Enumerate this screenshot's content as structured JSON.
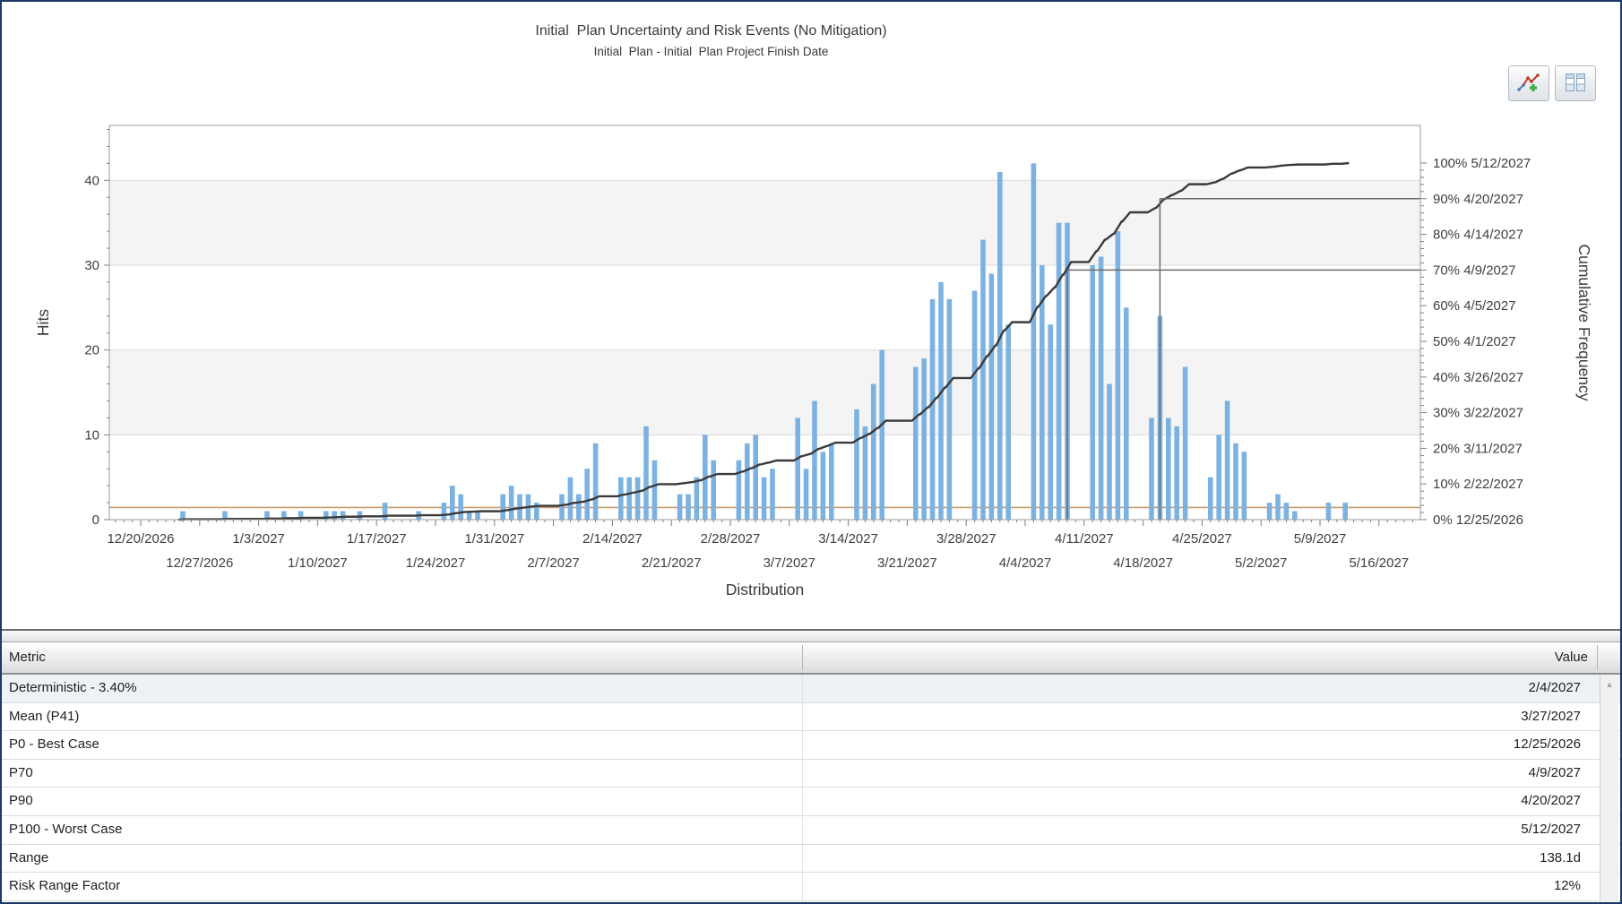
{
  "chart_data": {
    "type": "histogram+cumulative",
    "title": "Initial  Plan Uncertainty and Risk Events (No Mitigation)",
    "subtitle": "Initial  Plan - Initial  Plan Project Finish Date",
    "xlabel": "Distribution",
    "ylabel_left": "Hits",
    "ylabel_right": "Cumulative Frequency",
    "y_left": {
      "ticks": [
        0,
        10,
        20,
        30,
        40
      ],
      "max": 46
    },
    "shaded_bands": [
      [
        10,
        20
      ],
      [
        30,
        40
      ]
    ],
    "day_zero": "12/20/2026",
    "x_ticks": [
      {
        "date": "12/20/2026",
        "day": 0
      },
      {
        "date": "12/27/2026",
        "day": 7
      },
      {
        "date": "1/3/2027",
        "day": 14
      },
      {
        "date": "1/10/2027",
        "day": 21
      },
      {
        "date": "1/17/2027",
        "day": 28
      },
      {
        "date": "1/24/2027",
        "day": 35
      },
      {
        "date": "1/31/2027",
        "day": 42
      },
      {
        "date": "2/7/2027",
        "day": 49
      },
      {
        "date": "2/14/2027",
        "day": 56
      },
      {
        "date": "2/21/2027",
        "day": 63
      },
      {
        "date": "2/28/2027",
        "day": 70
      },
      {
        "date": "3/7/2027",
        "day": 77
      },
      {
        "date": "3/14/2027",
        "day": 84
      },
      {
        "date": "3/21/2027",
        "day": 91
      },
      {
        "date": "3/28/2027",
        "day": 98
      },
      {
        "date": "4/4/2027",
        "day": 105
      },
      {
        "date": "4/11/2027",
        "day": 112
      },
      {
        "date": "4/18/2027",
        "day": 119
      },
      {
        "date": "4/25/2027",
        "day": 126
      },
      {
        "date": "5/2/2027",
        "day": 133
      },
      {
        "date": "5/9/2027",
        "day": 140
      },
      {
        "date": "5/16/2027",
        "day": 147
      }
    ],
    "y_right_labels": [
      {
        "pct": 100,
        "date": "5/12/2027"
      },
      {
        "pct": 90,
        "date": "4/20/2027"
      },
      {
        "pct": 80,
        "date": "4/14/2027"
      },
      {
        "pct": 70,
        "date": "4/9/2027"
      },
      {
        "pct": 60,
        "date": "4/5/2027"
      },
      {
        "pct": 50,
        "date": "4/1/2027"
      },
      {
        "pct": 40,
        "date": "3/26/2027"
      },
      {
        "pct": 30,
        "date": "3/22/2027"
      },
      {
        "pct": 20,
        "date": "3/11/2027"
      },
      {
        "pct": 10,
        "date": "2/22/2027"
      },
      {
        "pct": 0,
        "date": "12/25/2026"
      }
    ],
    "bars": [
      [
        5,
        1
      ],
      [
        10,
        1
      ],
      [
        15,
        1
      ],
      [
        17,
        1
      ],
      [
        19,
        1
      ],
      [
        22,
        1
      ],
      [
        23,
        1
      ],
      [
        24,
        1
      ],
      [
        26,
        1
      ],
      [
        29,
        2
      ],
      [
        33,
        1
      ],
      [
        36,
        2
      ],
      [
        37,
        4
      ],
      [
        38,
        3
      ],
      [
        39,
        1
      ],
      [
        40,
        1
      ],
      [
        43,
        3
      ],
      [
        44,
        4
      ],
      [
        45,
        3
      ],
      [
        46,
        3
      ],
      [
        47,
        2
      ],
      [
        50,
        3
      ],
      [
        51,
        5
      ],
      [
        52,
        3
      ],
      [
        53,
        6
      ],
      [
        54,
        9
      ],
      [
        57,
        5
      ],
      [
        58,
        5
      ],
      [
        59,
        5
      ],
      [
        60,
        11
      ],
      [
        61,
        7
      ],
      [
        64,
        3
      ],
      [
        65,
        3
      ],
      [
        66,
        5
      ],
      [
        67,
        10
      ],
      [
        68,
        7
      ],
      [
        71,
        7
      ],
      [
        72,
        9
      ],
      [
        73,
        10
      ],
      [
        74,
        5
      ],
      [
        75,
        6
      ],
      [
        78,
        12
      ],
      [
        79,
        6
      ],
      [
        80,
        14
      ],
      [
        81,
        8
      ],
      [
        82,
        9
      ],
      [
        85,
        13
      ],
      [
        86,
        11
      ],
      [
        87,
        16
      ],
      [
        88,
        20
      ],
      [
        92,
        18
      ],
      [
        93,
        19
      ],
      [
        94,
        26
      ],
      [
        95,
        28
      ],
      [
        96,
        26
      ],
      [
        99,
        27
      ],
      [
        100,
        33
      ],
      [
        101,
        29
      ],
      [
        102,
        41
      ],
      [
        103,
        23
      ],
      [
        106,
        42
      ],
      [
        107,
        30
      ],
      [
        108,
        23
      ],
      [
        109,
        35
      ],
      [
        110,
        35
      ],
      [
        113,
        30
      ],
      [
        114,
        31
      ],
      [
        115,
        16
      ],
      [
        116,
        34
      ],
      [
        117,
        25
      ],
      [
        120,
        12
      ],
      [
        121,
        24
      ],
      [
        122,
        12
      ],
      [
        123,
        11
      ],
      [
        124,
        18
      ],
      [
        127,
        5
      ],
      [
        128,
        10
      ],
      [
        129,
        14
      ],
      [
        130,
        9
      ],
      [
        131,
        8
      ],
      [
        134,
        2
      ],
      [
        135,
        3
      ],
      [
        136,
        2
      ],
      [
        137,
        1
      ],
      [
        141,
        2
      ],
      [
        143,
        2
      ]
    ],
    "percentile_markers": [
      {
        "label": "P70",
        "pct": 70,
        "day": 110,
        "date": "4/9/2027"
      },
      {
        "label": "P90",
        "pct": 90,
        "day": 121,
        "date": "4/20/2027"
      }
    ],
    "deterministic_pct": 3.4,
    "colors": {
      "bar": "#7cb2e2",
      "curve": "#3a3a3a",
      "marker": "#6b6b6b",
      "deterministic_line": "#c99b6d",
      "grid": "#dadada",
      "band": "#f4f4f4",
      "axis": "#7f7f7f",
      "frame": "#9b9b9b"
    }
  },
  "toolbar": {
    "buttons": [
      {
        "name": "chart-settings",
        "icon": "line-chart-add-icon"
      },
      {
        "name": "table-view",
        "icon": "table-columns-icon"
      }
    ]
  },
  "table": {
    "columns": [
      "Metric",
      "Value"
    ],
    "selected_row": 0,
    "rows": [
      {
        "metric": "Deterministic - 3.40%",
        "value": "2/4/2027"
      },
      {
        "metric": "Mean (P41)",
        "value": "3/27/2027"
      },
      {
        "metric": "P0 - Best Case",
        "value": "12/25/2026"
      },
      {
        "metric": "P70",
        "value": "4/9/2027"
      },
      {
        "metric": "P90",
        "value": "4/20/2027"
      },
      {
        "metric": "P100 - Worst Case",
        "value": "5/12/2027"
      },
      {
        "metric": "Range",
        "value": "138.1d"
      },
      {
        "metric": "Risk Range Factor",
        "value": "12%"
      }
    ],
    "scroll_up_glyph": "▲"
  }
}
